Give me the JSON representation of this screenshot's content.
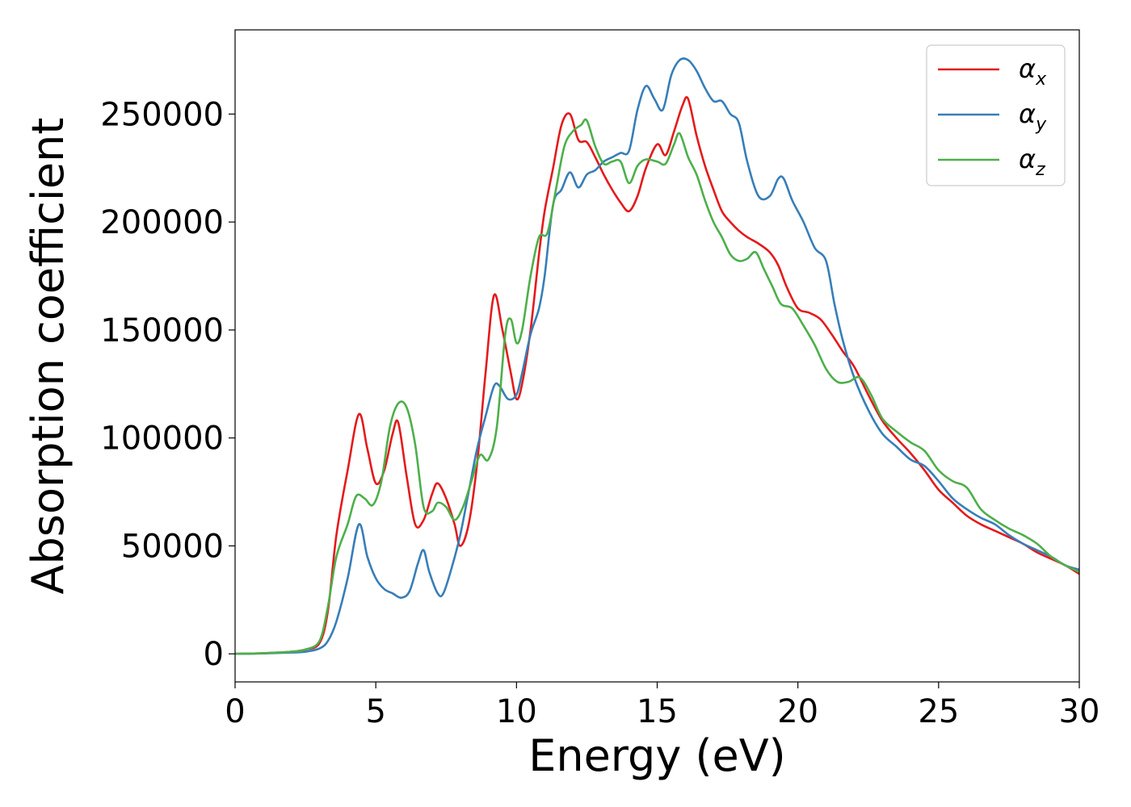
{
  "chart_data": {
    "type": "line",
    "xlabel": "Energy (eV)",
    "ylabel": "Absorption coefficient",
    "xlim": [
      0,
      30
    ],
    "ylim": [
      -13000,
      289000
    ],
    "xticks": [
      0,
      5,
      10,
      15,
      20,
      25,
      30
    ],
    "xtick_labels": [
      "0",
      "5",
      "10",
      "15",
      "20",
      "25",
      "30"
    ],
    "yticks": [
      0,
      50000,
      100000,
      150000,
      200000,
      250000
    ],
    "ytick_labels": [
      "0",
      "50000",
      "100000",
      "150000",
      "200000",
      "250000"
    ],
    "grid": false,
    "legend_position": "top-right",
    "series": [
      {
        "name": "α_x",
        "legend_main": "α",
        "legend_sub": "x",
        "color": "#e41a1c",
        "x": [
          0,
          1,
          2,
          2.5,
          3,
          3.3,
          3.6,
          4,
          4.4,
          4.7,
          5,
          5.3,
          5.6,
          5.8,
          6.1,
          6.4,
          6.7,
          7,
          7.2,
          7.5,
          7.8,
          8,
          8.3,
          8.6,
          8.9,
          9.2,
          9.5,
          9.8,
          10,
          10.2,
          10.5,
          10.8,
          11,
          11.3,
          11.6,
          11.9,
          12.2,
          12.5,
          12.8,
          13.1,
          13.4,
          13.7,
          14,
          14.3,
          14.6,
          15,
          15.3,
          15.6,
          15.9,
          16.1,
          16.4,
          16.7,
          17,
          17.3,
          17.6,
          17.9,
          18.2,
          18.6,
          19,
          19.3,
          19.6,
          20,
          20.4,
          20.8,
          21.2,
          21.6,
          22,
          22.5,
          23,
          23.5,
          24,
          24.5,
          25,
          25.5,
          26,
          26.5,
          27,
          27.5,
          28,
          28.5,
          29,
          29.5,
          30
        ],
        "y": [
          0,
          300,
          1000,
          2000,
          5000,
          20000,
          55000,
          85000,
          111000,
          95000,
          79000,
          85000,
          102000,
          107000,
          82000,
          60000,
          62000,
          74000,
          79000,
          72000,
          60000,
          50000,
          60000,
          88000,
          130000,
          166000,
          150000,
          130000,
          118000,
          125000,
          150000,
          185000,
          205000,
          225000,
          245000,
          250000,
          238000,
          237000,
          230000,
          222000,
          215000,
          209000,
          205000,
          212000,
          225000,
          236000,
          231000,
          242000,
          254000,
          257000,
          240000,
          226000,
          215000,
          205000,
          200000,
          196000,
          193000,
          190000,
          186000,
          180000,
          170000,
          160000,
          158000,
          155000,
          148000,
          140000,
          133000,
          120000,
          108000,
          100000,
          93000,
          85000,
          76000,
          70000,
          64000,
          60000,
          57000,
          54000,
          51000,
          47000,
          44000,
          41000,
          37000
        ]
      },
      {
        "name": "α_y",
        "legend_main": "α",
        "legend_sub": "y",
        "color": "#377eb8",
        "x": [
          0,
          1,
          2,
          2.5,
          3,
          3.3,
          3.6,
          4,
          4.4,
          4.7,
          5,
          5.3,
          5.6,
          5.9,
          6.2,
          6.5,
          6.7,
          6.9,
          7.2,
          7.4,
          7.7,
          8,
          8.3,
          8.6,
          8.9,
          9.2,
          9.4,
          9.7,
          10,
          10.2,
          10.5,
          10.8,
          11,
          11.3,
          11.6,
          11.9,
          12.2,
          12.5,
          12.8,
          13.1,
          13.4,
          13.7,
          14,
          14.3,
          14.6,
          14.9,
          15.2,
          15.5,
          15.8,
          16.1,
          16.4,
          16.7,
          17,
          17.3,
          17.6,
          17.9,
          18.2,
          18.6,
          19,
          19.3,
          19.5,
          19.8,
          20.2,
          20.6,
          21,
          21.3,
          21.6,
          22,
          22.5,
          23,
          23.5,
          24,
          24.5,
          25,
          25.5,
          26,
          26.5,
          27,
          27.5,
          28,
          28.5,
          29,
          29.5,
          30
        ],
        "y": [
          0,
          200,
          600,
          1000,
          2500,
          6000,
          15000,
          35000,
          60000,
          45000,
          35000,
          30000,
          28000,
          26000,
          29000,
          42000,
          48000,
          38000,
          28000,
          28000,
          40000,
          55000,
          75000,
          95000,
          110000,
          124000,
          124000,
          118000,
          120000,
          130000,
          148000,
          160000,
          175000,
          208000,
          215000,
          223000,
          216000,
          222000,
          224000,
          228000,
          230000,
          232000,
          233000,
          252000,
          263000,
          257000,
          252000,
          268000,
          275000,
          275000,
          270000,
          262000,
          256000,
          256000,
          250000,
          246000,
          228000,
          212000,
          212000,
          220000,
          220000,
          210000,
          200000,
          188000,
          182000,
          162000,
          145000,
          128000,
          113000,
          102000,
          96000,
          90000,
          87000,
          80000,
          72000,
          67000,
          63000,
          60000,
          55000,
          51000,
          48000,
          45000,
          41000,
          39000
        ]
      },
      {
        "name": "α_z",
        "legend_main": "α",
        "legend_sub": "z",
        "color": "#4daf4a",
        "x": [
          0,
          1,
          2,
          2.5,
          3,
          3.3,
          3.6,
          4,
          4.3,
          4.6,
          4.9,
          5.2,
          5.5,
          5.8,
          6.1,
          6.4,
          6.7,
          7,
          7.2,
          7.5,
          7.8,
          8.1,
          8.4,
          8.7,
          9,
          9.3,
          9.6,
          9.8,
          10,
          10.2,
          10.5,
          10.8,
          11.1,
          11.4,
          11.7,
          12,
          12.3,
          12.5,
          12.8,
          13.1,
          13.4,
          13.7,
          14,
          14.3,
          14.6,
          15,
          15.3,
          15.6,
          15.8,
          16.1,
          16.4,
          16.7,
          17,
          17.3,
          17.6,
          17.9,
          18.2,
          18.5,
          18.8,
          19.1,
          19.4,
          19.8,
          20.2,
          20.6,
          21,
          21.4,
          21.8,
          22.2,
          22.6,
          23,
          23.5,
          24,
          24.5,
          25,
          25.5,
          26,
          26.5,
          27,
          27.5,
          28,
          28.5,
          29,
          29.5,
          30
        ],
        "y": [
          0,
          300,
          1000,
          2000,
          6000,
          22000,
          45000,
          60000,
          73000,
          72000,
          69000,
          80000,
          105000,
          116000,
          114000,
          97000,
          68000,
          66000,
          70000,
          68000,
          62000,
          68000,
          80000,
          92000,
          90000,
          105000,
          148000,
          155000,
          144000,
          150000,
          175000,
          193000,
          195000,
          215000,
          235000,
          242000,
          245000,
          247000,
          235000,
          227000,
          228000,
          228000,
          218000,
          226000,
          229000,
          228000,
          227000,
          236000,
          241000,
          230000,
          222000,
          210000,
          200000,
          193000,
          185000,
          182000,
          183000,
          186000,
          178000,
          170000,
          162000,
          160000,
          152000,
          143000,
          132000,
          126000,
          126000,
          128000,
          120000,
          109000,
          103000,
          98000,
          94000,
          85000,
          80000,
          77000,
          67000,
          62000,
          58000,
          55000,
          51000,
          45000,
          41000,
          38000
        ]
      }
    ]
  }
}
